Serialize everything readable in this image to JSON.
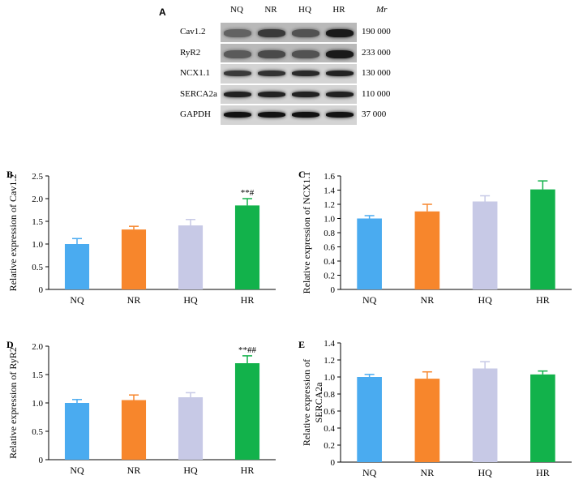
{
  "blot": {
    "panel": "A",
    "lanes": [
      "NQ",
      "NR",
      "HQ",
      "HR"
    ],
    "mr_label": "Mr",
    "rows": [
      {
        "name": "Cav1.2",
        "mw": "190 000",
        "intensity": [
          0.45,
          0.7,
          0.55,
          0.9
        ]
      },
      {
        "name": "RyR2",
        "mw": "233 000",
        "intensity": [
          0.5,
          0.6,
          0.55,
          0.9
        ]
      },
      {
        "name": "NCX1.1",
        "mw": "130 000",
        "intensity": [
          0.7,
          0.75,
          0.8,
          0.85
        ]
      },
      {
        "name": "SERCA2a",
        "mw": "110 000",
        "intensity": [
          0.85,
          0.85,
          0.85,
          0.85
        ]
      },
      {
        "name": "GAPDH",
        "mw": "37 000",
        "intensity": [
          0.95,
          0.95,
          0.95,
          0.95
        ]
      }
    ]
  },
  "chart_data": [
    {
      "panel": "B",
      "type": "bar",
      "categories": [
        "NQ",
        "NR",
        "HQ",
        "HR"
      ],
      "values": [
        1.0,
        1.32,
        1.41,
        1.85
      ],
      "errors": [
        0.12,
        0.07,
        0.13,
        0.15
      ],
      "annotations": [
        "",
        "",
        "",
        "**#"
      ],
      "ylabel": "Relative expression of Cav1.2",
      "ylim": [
        0,
        2.5
      ],
      "yticks": [
        "0",
        "0.5",
        "1.0",
        "1.5",
        "2.0",
        "2.5"
      ],
      "colors": [
        "#4aabf0",
        "#f7862c",
        "#c7c9e6",
        "#12b24b"
      ]
    },
    {
      "panel": "C",
      "type": "bar",
      "categories": [
        "NQ",
        "NR",
        "HQ",
        "HR"
      ],
      "values": [
        1.0,
        1.1,
        1.24,
        1.41
      ],
      "errors": [
        0.04,
        0.1,
        0.08,
        0.12
      ],
      "annotations": [
        "",
        "",
        "",
        ""
      ],
      "ylabel": "Relative expression of NCX1.1",
      "ylim": [
        0,
        1.6
      ],
      "yticks": [
        "0",
        "0.2",
        "0.4",
        "0.6",
        "0.8",
        "1.0",
        "1.2",
        "1.4",
        "1.6"
      ],
      "colors": [
        "#4aabf0",
        "#f7862c",
        "#c7c9e6",
        "#12b24b"
      ]
    },
    {
      "panel": "D",
      "type": "bar",
      "categories": [
        "NQ",
        "NR",
        "HQ",
        "HR"
      ],
      "values": [
        1.0,
        1.05,
        1.1,
        1.7
      ],
      "errors": [
        0.06,
        0.09,
        0.08,
        0.13
      ],
      "annotations": [
        "",
        "",
        "",
        "**##"
      ],
      "ylabel": "Relative expression of RyR2",
      "ylim": [
        0,
        2.0
      ],
      "yticks": [
        "0",
        "0.5",
        "1.0",
        "1.5",
        "2.0"
      ],
      "colors": [
        "#4aabf0",
        "#f7862c",
        "#c7c9e6",
        "#12b24b"
      ]
    },
    {
      "panel": "E",
      "type": "bar",
      "categories": [
        "NQ",
        "NR",
        "HQ",
        "HR"
      ],
      "values": [
        1.0,
        0.98,
        1.1,
        1.03
      ],
      "errors": [
        0.03,
        0.08,
        0.08,
        0.04
      ],
      "annotations": [
        "",
        "",
        "",
        ""
      ],
      "ylabel": "Relative expression of SERCA2a",
      "ylim": [
        0,
        1.4
      ],
      "yticks": [
        "0",
        "0.2",
        "0.4",
        "0.6",
        "0.8",
        "1.0",
        "1.2",
        "1.4"
      ],
      "colors": [
        "#4aabf0",
        "#f7862c",
        "#c7c9e6",
        "#12b24b"
      ]
    }
  ]
}
